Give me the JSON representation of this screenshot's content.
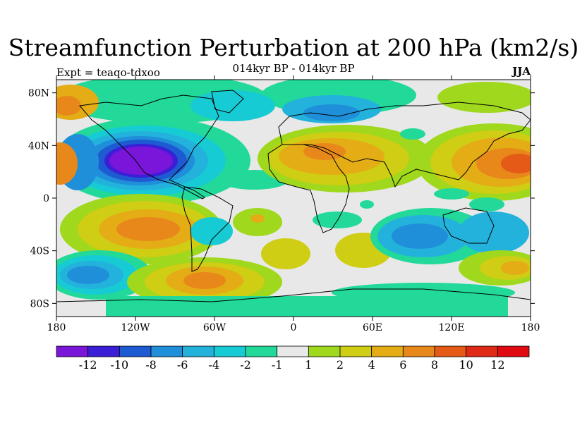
{
  "title": "Streamfunction Perturbation at 200 hPa (km2/s)",
  "subtitle": "014kyr BP - 014kyr BP",
  "expt_label": "Expt = teaqo-tdxoo",
  "season": "JJA",
  "map": {
    "type": "filled-contour",
    "projection": "cylindrical-equidistant",
    "lon_range": [
      -180,
      180
    ],
    "lat_range": [
      -90,
      90
    ],
    "x_ticks": [
      "180",
      "120W",
      "60W",
      "0",
      "60E",
      "120E",
      "180"
    ],
    "y_ticks": [
      "80N",
      "40N",
      "0",
      "40S",
      "80S"
    ],
    "background_color": "#e8e8e8",
    "features": [
      {
        "name": "north-america-low",
        "lon": -128,
        "lat": 30,
        "value": -13
      },
      {
        "name": "north-atlantic-high",
        "lon": -10,
        "lat": 28,
        "value": 3
      },
      {
        "name": "eurasia-high",
        "lon": 25,
        "lat": 30,
        "value": 6
      },
      {
        "name": "asia-high",
        "lon": 165,
        "lat": 28,
        "value": 10
      },
      {
        "name": "siberia-low",
        "lon": 40,
        "lat": 65,
        "value": -6
      },
      {
        "name": "south-pacific-high",
        "lon": -110,
        "lat": -25,
        "value": 8
      },
      {
        "name": "south-atlantic-high",
        "lon": -60,
        "lat": -60,
        "value": 8
      },
      {
        "name": "south-pacific-low",
        "lon": -150,
        "lat": -55,
        "value": -6
      },
      {
        "name": "indian-ocean-low",
        "lon": 95,
        "lat": -30,
        "value": -7
      },
      {
        "name": "australia-low",
        "lon": 140,
        "lat": -25,
        "value": -5
      }
    ]
  },
  "colorbar": {
    "labels": [
      "-12",
      "-10",
      "-8",
      "-6",
      "-4",
      "-2",
      "-1",
      "1",
      "2",
      "4",
      "6",
      "8",
      "10",
      "12"
    ],
    "colors": [
      "#7a16d9",
      "#3a1fd6",
      "#1e5ad2",
      "#1f8fd9",
      "#23b2dc",
      "#17cbd4",
      "#22d99a",
      "#e8e8e8",
      "#9fd81c",
      "#cfcd14",
      "#e4ad16",
      "#e8881a",
      "#e55a16",
      "#e02a18",
      "#e00b10"
    ]
  }
}
